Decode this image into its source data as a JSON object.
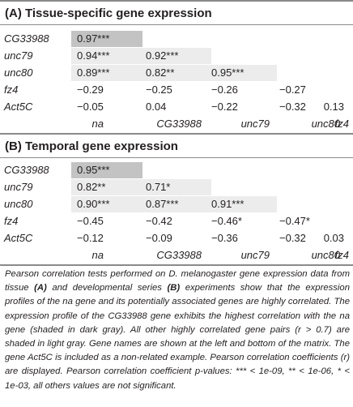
{
  "panel_a": {
    "title": "(A) Tissue-specific gene expression",
    "rows": [
      {
        "gene": "CG33988",
        "values": [
          "0.97***"
        ]
      },
      {
        "gene": "unc79",
        "values": [
          "0.94***",
          "0.92***"
        ]
      },
      {
        "gene": "unc80",
        "values": [
          "0.89***",
          "0.82**",
          "0.95***"
        ]
      },
      {
        "gene": "fz4",
        "values": [
          "−0.29",
          "−0.25",
          "−0.26",
          "−0.27"
        ]
      },
      {
        "gene": "Act5C",
        "values": [
          "−0.05",
          "0.04",
          "−0.22",
          "−0.32",
          "0.13"
        ]
      }
    ],
    "columns": [
      "na",
      "CG33988",
      "unc79",
      "unc80",
      "fz4"
    ]
  },
  "panel_b": {
    "title": "(B) Temporal gene expression",
    "rows": [
      {
        "gene": "CG33988",
        "values": [
          "0.95***"
        ]
      },
      {
        "gene": "unc79",
        "values": [
          "0.82**",
          "0.71*"
        ]
      },
      {
        "gene": "unc80",
        "values": [
          "0.90***",
          "0.87***",
          "0.91***"
        ]
      },
      {
        "gene": "fz4",
        "values": [
          "−0.45",
          "−0.42",
          "−0.46*",
          "−0.47*"
        ]
      },
      {
        "gene": "Act5C",
        "values": [
          "−0.12",
          "−0.09",
          "−0.36",
          "−0.32",
          "0.03"
        ]
      }
    ],
    "columns": [
      "na",
      "CG33988",
      "unc79",
      "unc80",
      "fz4"
    ]
  },
  "caption": {
    "p1": "Pearson correlation tests performed on D. melanogaster gene expression data from tissue ",
    "a": "(A)",
    "p2": " and developmental series ",
    "b": "(B)",
    "p3": " experiments show that the expression profiles of the na gene and its potentially associated genes are highly correlated. The expression profile of the CG33988 gene exhibits the highest correlation with the na gene (shaded in dark gray). All other highly correlated gene pairs (r > 0.7) are shaded in light gray. Gene names are shown at the left and bottom of the matrix. The gene Act5C is included as a non-related example. Pearson correlation coefficients (r) are displayed. Pearson correlation coefficient p-values: *** < 1e-09, ** < 1e-06, * < 1e-03, all others values are not significant."
  },
  "colors": {
    "dark_shade": "#c3c3c3",
    "light_shade": "#ececec",
    "rule": "#8a8a8a"
  }
}
